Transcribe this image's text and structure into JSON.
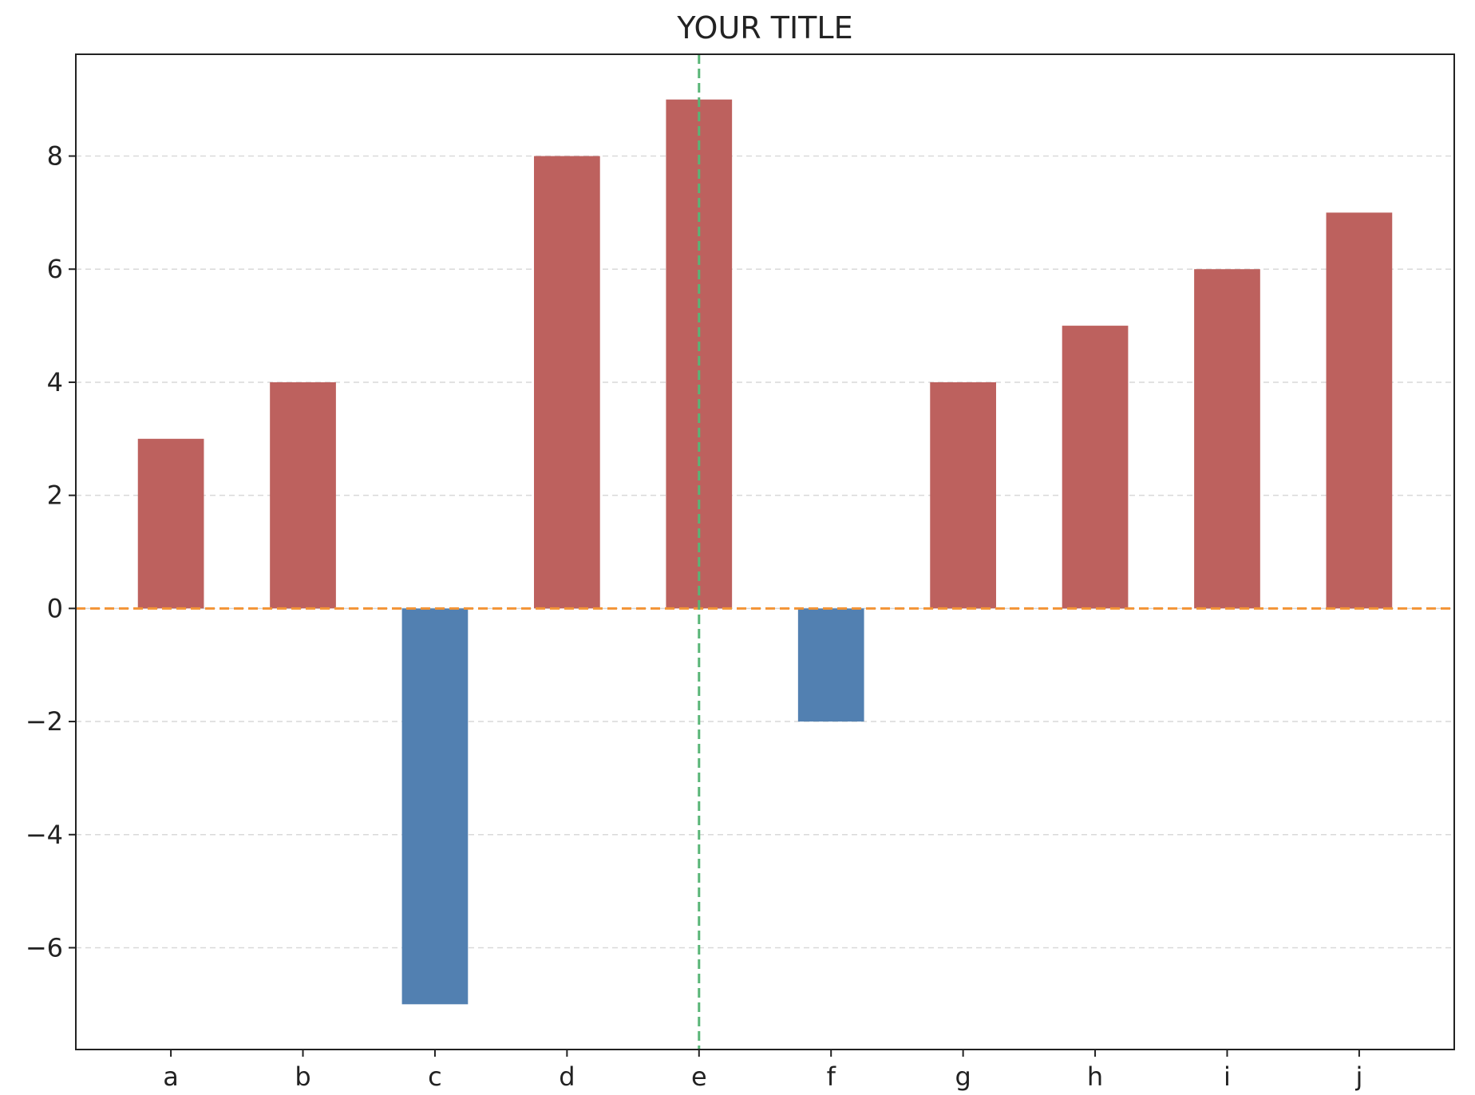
{
  "chart_data": {
    "type": "bar",
    "title": "YOUR TITLE",
    "xlabel": "",
    "ylabel": "",
    "categories": [
      "a",
      "b",
      "c",
      "d",
      "e",
      "f",
      "g",
      "h",
      "i",
      "j"
    ],
    "values": [
      3,
      4,
      -7,
      8,
      9,
      -2,
      4,
      5,
      6,
      7
    ],
    "ylim": [
      -7.8,
      9.8
    ],
    "yticks": [
      -6,
      -4,
      -2,
      0,
      2,
      4,
      6,
      8
    ],
    "ytick_labels": [
      "−6",
      "−4",
      "−2",
      "0",
      "2",
      "4",
      "6",
      "8"
    ],
    "grid": {
      "axis": "y",
      "style": "dashed",
      "color": "#d9d9d9"
    },
    "colors": {
      "positive": "#bd615e",
      "negative": "#5280b1",
      "zero_line": "#f39435",
      "vertical_line": "#59b576",
      "axes": "#222222"
    },
    "reference_lines": [
      {
        "orientation": "horizontal",
        "value": 0,
        "style": "dashed",
        "color": "#f39435"
      },
      {
        "orientation": "vertical",
        "category": "e",
        "style": "dashed",
        "color": "#59b576"
      }
    ],
    "legend": "none"
  }
}
